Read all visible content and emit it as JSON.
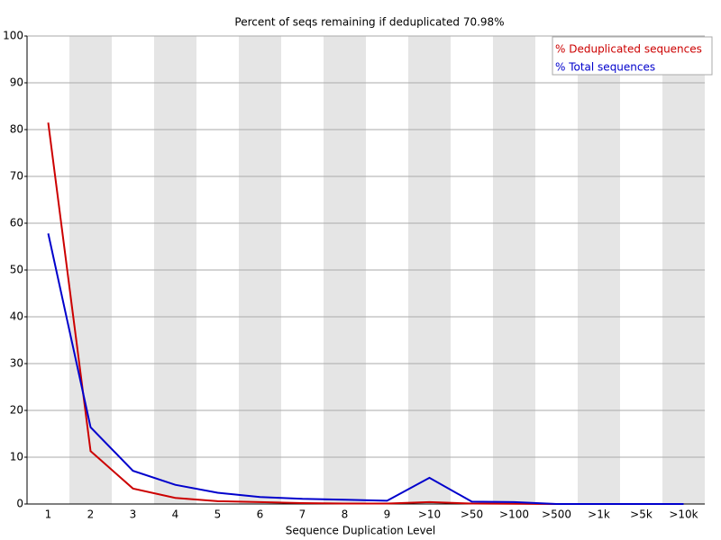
{
  "chart_data": {
    "type": "line",
    "title": "Percent of seqs remaining if deduplicated 70.98%",
    "x_label": "Sequence Duplication Level",
    "categories": [
      "1",
      "2",
      "3",
      "4",
      "5",
      "6",
      "7",
      "8",
      "9",
      ">10",
      ">50",
      ">100",
      ">500",
      ">1k",
      ">5k",
      ">10k"
    ],
    "series": [
      {
        "name": "% Deduplicated sequences",
        "color": "#cc0000",
        "values": [
          81.5,
          11.3,
          3.3,
          1.3,
          0.6,
          0.4,
          0.2,
          0.1,
          0.1,
          0.4,
          0.1,
          0.05,
          0,
          0,
          0,
          0
        ]
      },
      {
        "name": "% Total sequences",
        "color": "#0000cc",
        "values": [
          57.8,
          16.4,
          7.1,
          4.1,
          2.4,
          1.5,
          1.1,
          0.9,
          0.7,
          5.6,
          0.5,
          0.4,
          0,
          0,
          0,
          0
        ]
      }
    ],
    "ylim": [
      0,
      100
    ],
    "yticks": [
      0,
      10,
      20,
      30,
      40,
      50,
      60,
      70,
      80,
      90,
      100
    ],
    "grid": true,
    "legend": "top-right"
  }
}
